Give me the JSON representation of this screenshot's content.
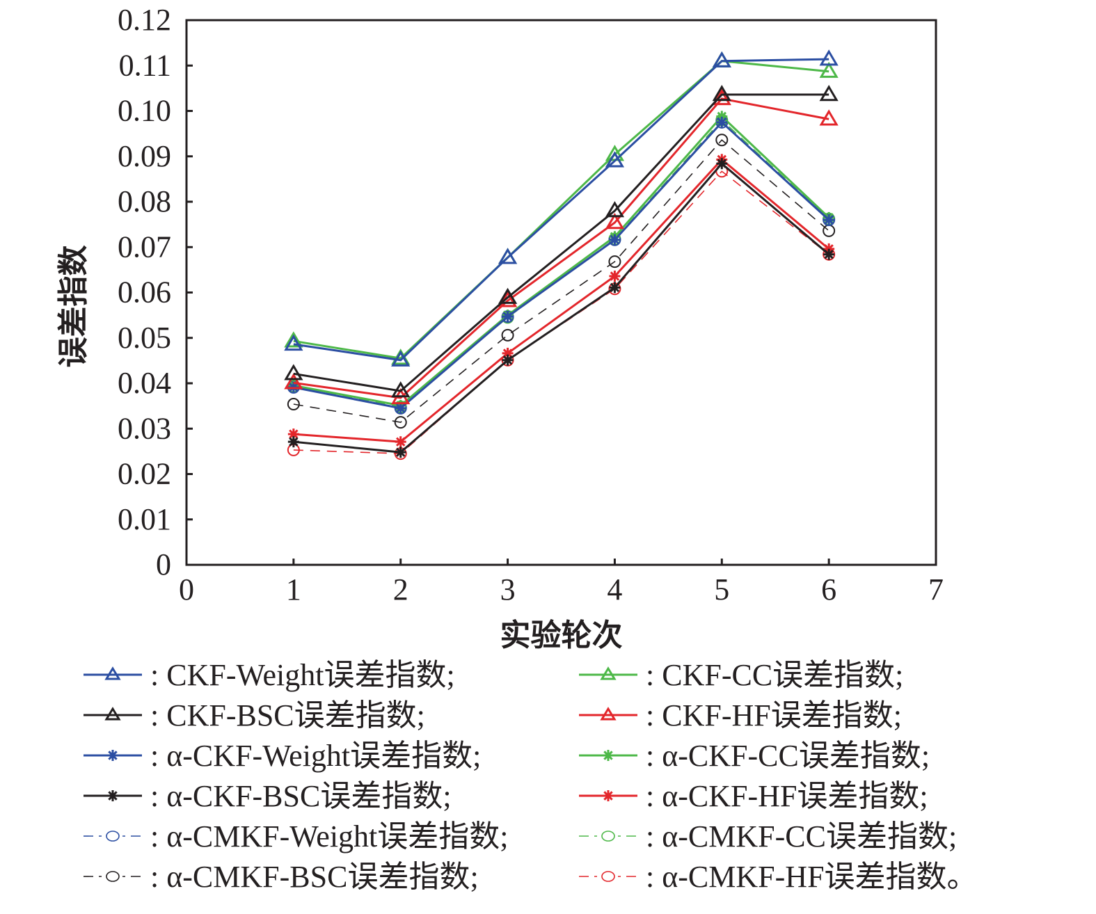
{
  "chart_data": {
    "type": "line",
    "title": "",
    "xlabel": "实验轮次",
    "ylabel": "误差指数",
    "xlim": [
      0,
      7
    ],
    "ylim": [
      0,
      0.12
    ],
    "xticks": [
      "0",
      "1",
      "2",
      "3",
      "4",
      "5",
      "6",
      "7"
    ],
    "yticks": [
      "0",
      "0.01",
      "0.02",
      "0.03",
      "0.04",
      "0.05",
      "0.06",
      "0.07",
      "0.08",
      "0.09",
      "0.10",
      "0.11",
      "0.12"
    ],
    "grid": false,
    "legend_position": "below",
    "x": [
      1,
      2,
      3,
      4,
      5,
      6
    ],
    "series": [
      {
        "name": ": CKF-Weight误差指数;",
        "color": "#2b4ea2",
        "marker": "triangle",
        "linestyle": "solid",
        "values": [
          0.0486,
          0.0451,
          0.0677,
          0.089,
          0.111,
          0.1114
        ]
      },
      {
        "name": ": CKF-CC误差指数;",
        "color": "#4db848",
        "marker": "triangle",
        "linestyle": "solid",
        "values": [
          0.0493,
          0.0455,
          0.0677,
          0.0904,
          0.111,
          0.1087
        ]
      },
      {
        "name": ": CKF-BSC误差指数;",
        "color": "#231f20",
        "marker": "triangle",
        "linestyle": "solid",
        "values": [
          0.0421,
          0.0383,
          0.0589,
          0.078,
          0.1036,
          0.1036
        ]
      },
      {
        "name": ": CKF-HF误差指数;",
        "color": "#e3262b",
        "marker": "triangle",
        "linestyle": "solid",
        "values": [
          0.0401,
          0.0368,
          0.0582,
          0.0754,
          0.1027,
          0.0982
        ]
      },
      {
        "name": ": α-CKF-Weight误差指数;",
        "color": "#2b4ea2",
        "marker": "asterisk",
        "linestyle": "solid",
        "values": [
          0.0391,
          0.0345,
          0.0547,
          0.0716,
          0.0975,
          0.076
        ]
      },
      {
        "name": ": α-CKF-CC误差指数;",
        "color": "#4db848",
        "marker": "asterisk",
        "linestyle": "solid",
        "values": [
          0.0395,
          0.0351,
          0.055,
          0.0723,
          0.0988,
          0.0765
        ]
      },
      {
        "name": ": α-CKF-BSC误差指数;",
        "color": "#231f20",
        "marker": "asterisk",
        "linestyle": "solid",
        "values": [
          0.0271,
          0.0248,
          0.0451,
          0.0611,
          0.0884,
          0.0684
        ]
      },
      {
        "name": ": α-CKF-HF误差指数;",
        "color": "#e3262b",
        "marker": "asterisk",
        "linestyle": "solid",
        "values": [
          0.0288,
          0.0271,
          0.0466,
          0.0636,
          0.0893,
          0.0696
        ]
      },
      {
        "name": ": α-CMKF-Weight误差指数;",
        "color": "#2b4ea2",
        "marker": "circle",
        "linestyle": "dashdot",
        "values": [
          0.0391,
          0.0345,
          0.0547,
          0.0716,
          0.0975,
          0.076
        ]
      },
      {
        "name": ": α-CMKF-CC误差指数;",
        "color": "#4db848",
        "marker": "circle",
        "linestyle": "dashdot",
        "values": [
          0.0393,
          0.0348,
          0.0545,
          0.0718,
          0.098,
          0.0762
        ]
      },
      {
        "name": ": α-CMKF-BSC误差指数;",
        "color": "#231f20",
        "marker": "circle",
        "linestyle": "dashdot",
        "values": [
          0.0354,
          0.0314,
          0.0506,
          0.0668,
          0.0936,
          0.0736
        ]
      },
      {
        "name": ": α-CMKF-HF误差指数。",
        "color": "#e3262b",
        "marker": "circle",
        "linestyle": "dashdot",
        "values": [
          0.0253,
          0.0245,
          0.0451,
          0.0608,
          0.0867,
          0.0684
        ]
      }
    ],
    "legend_order": [
      0,
      1,
      2,
      3,
      4,
      5,
      6,
      7,
      8,
      9,
      10,
      11
    ]
  }
}
